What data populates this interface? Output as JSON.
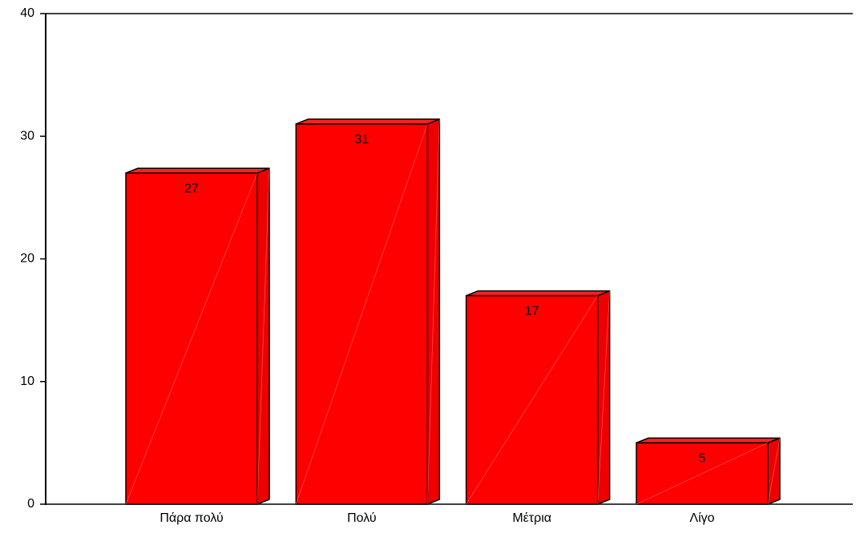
{
  "chart_data": {
    "type": "bar",
    "style": "3d",
    "categories": [
      "Πάρα πολύ",
      "Πολύ",
      "Μέτρια",
      "Λίγο"
    ],
    "values": [
      27,
      31,
      17,
      5
    ],
    "data_labels": [
      "27",
      "31",
      "17",
      "5"
    ],
    "title": "",
    "xlabel": "",
    "ylabel": "",
    "ylim": [
      0,
      40
    ],
    "yticks": [
      0,
      10,
      20,
      30,
      40
    ],
    "ytick_labels": [
      "0",
      "10",
      "20",
      "30",
      "40"
    ],
    "grid": false,
    "legend": "none"
  },
  "colors": {
    "bar_face": "#ff0000",
    "bar_top": "#ff2020",
    "bar_side": "#ee0000",
    "bar_edge": "#000000",
    "axis": "#000000"
  }
}
